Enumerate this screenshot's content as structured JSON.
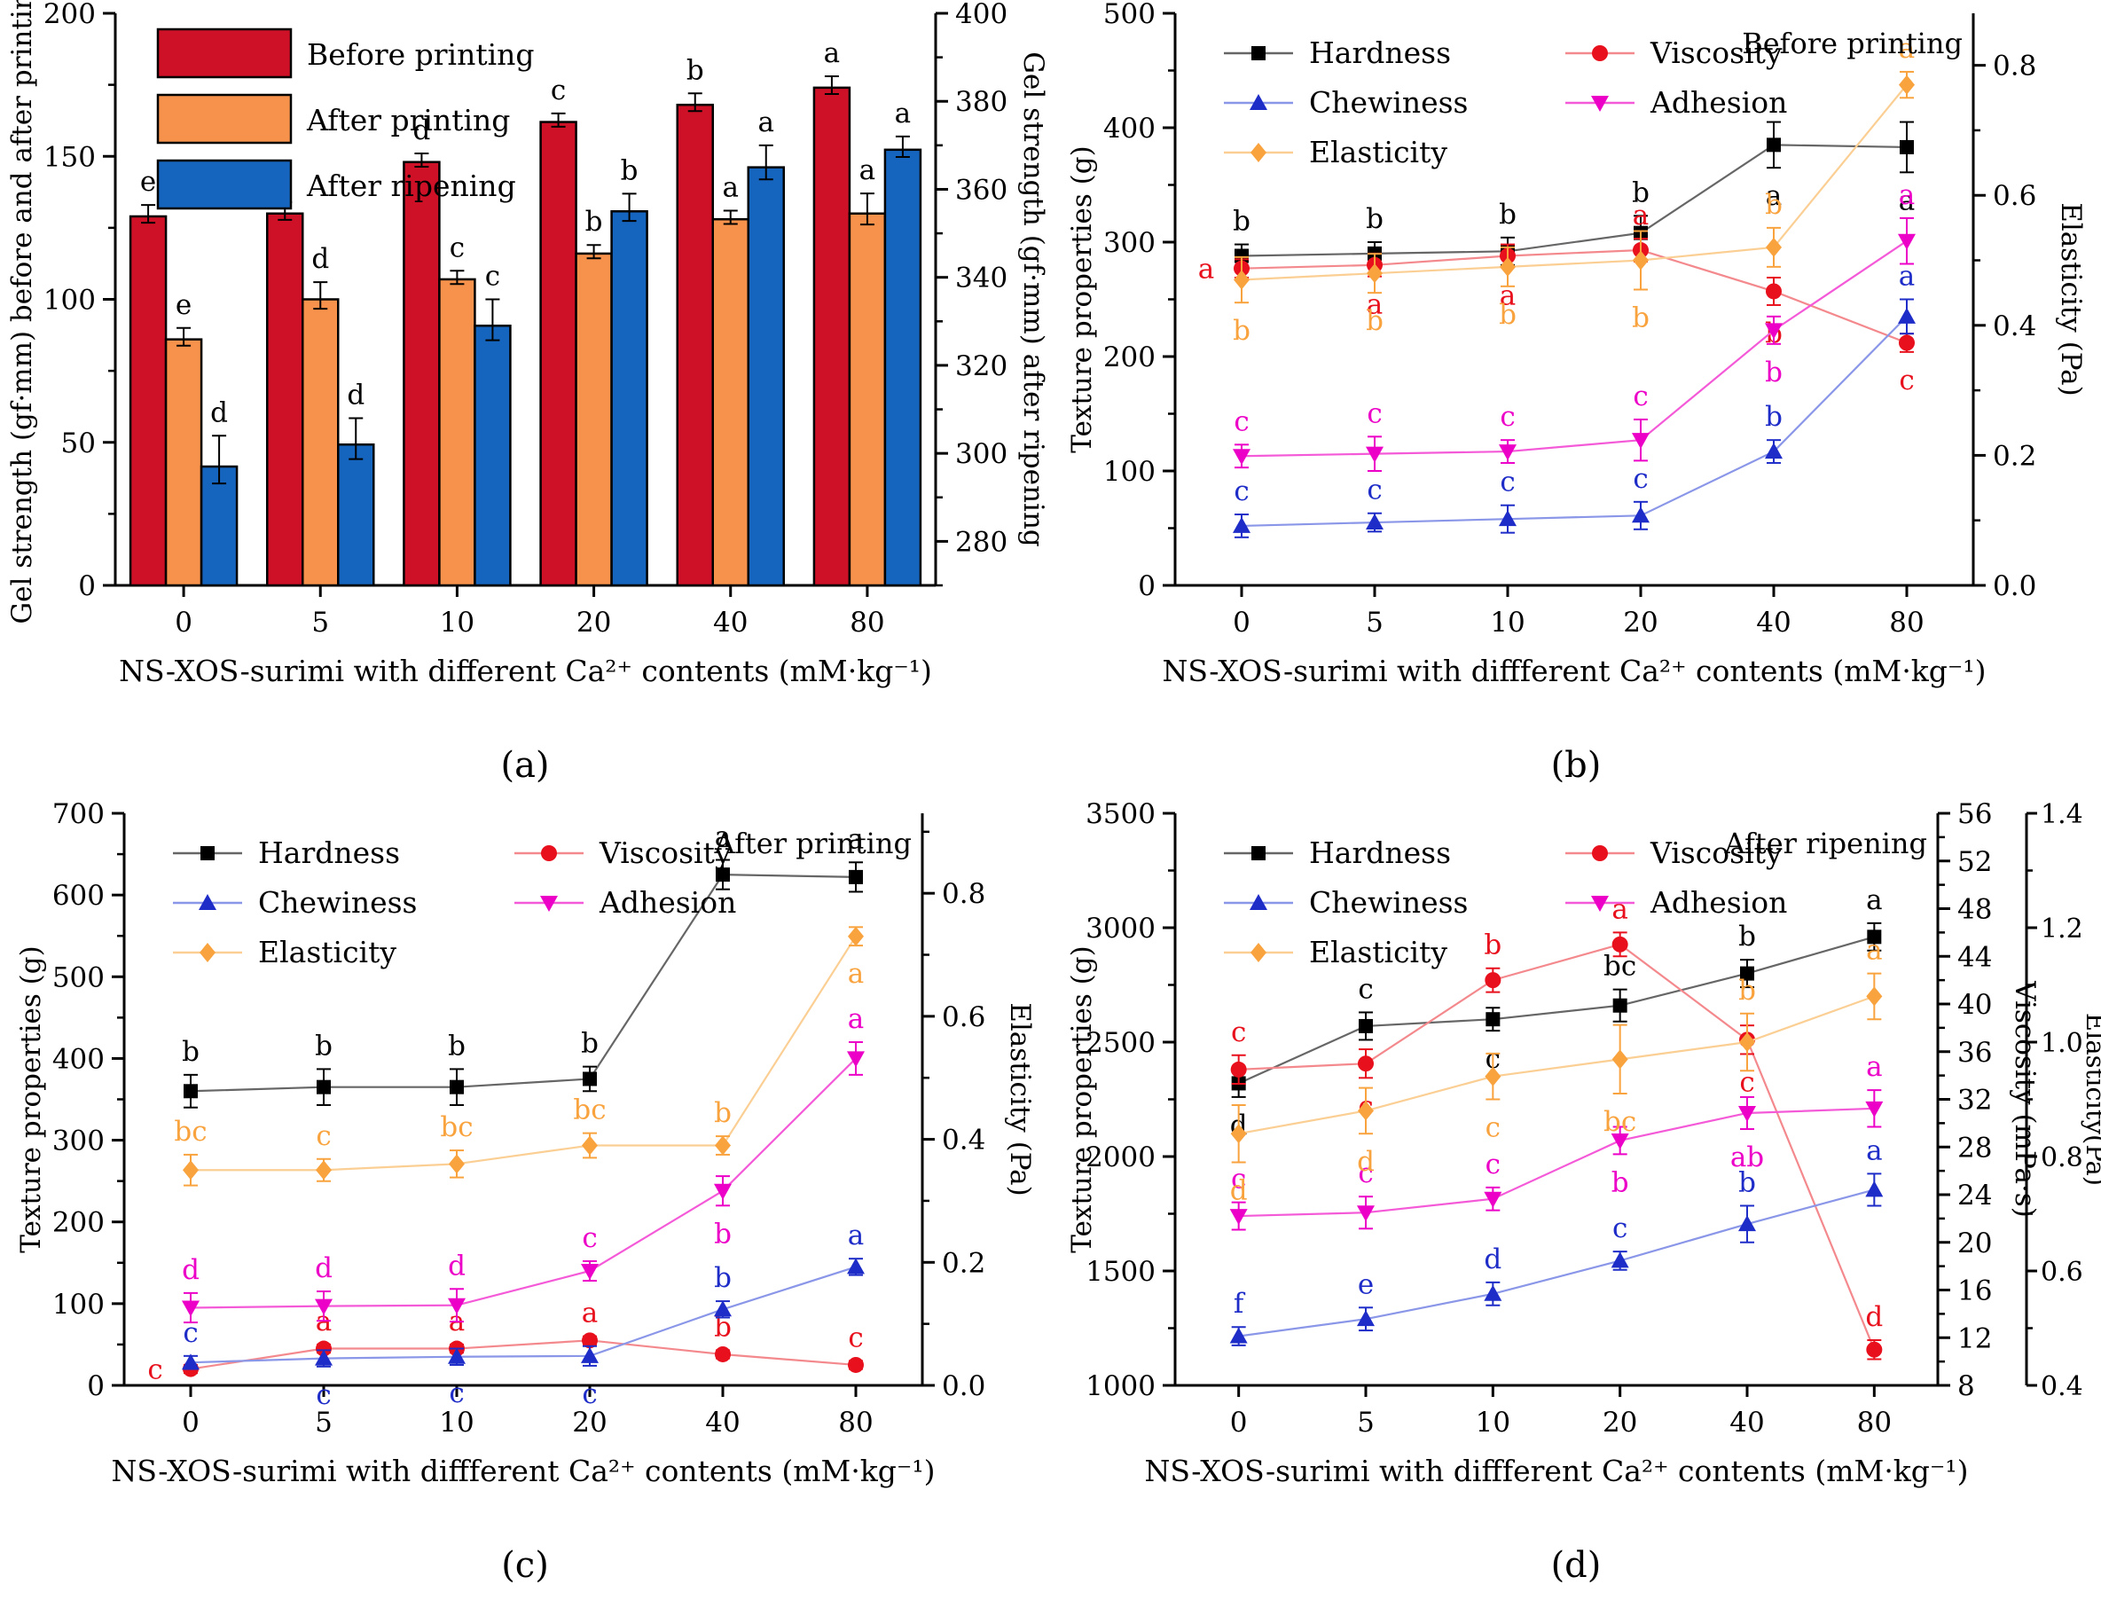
{
  "figure_background": "#ffffff",
  "chart_data": [
    {
      "id": "a",
      "caption": "(a)",
      "type": "bar",
      "x": {
        "label": "NS-XOS-surimi with different Ca²⁺ contents (mM·kg⁻¹)",
        "categories": [
          "0",
          "5",
          "10",
          "20",
          "40",
          "80"
        ]
      },
      "axes": {
        "left": {
          "label": "Gel strength (gf·mm) before and after printing",
          "min": 0,
          "max": 200,
          "ticks": [
            0,
            50,
            100,
            150,
            200
          ],
          "minor": 25,
          "decimals": 0
        },
        "right": {
          "label": "Gel strength (gf·mm) after ripening",
          "min": 270,
          "max": 400,
          "ticks": [
            280,
            300,
            320,
            340,
            360,
            380,
            400
          ],
          "minor": 10,
          "decimals": 0
        }
      },
      "series": [
        {
          "name": "Before printing",
          "axis": "left",
          "color": "#CE1126",
          "values": [
            129,
            130,
            148,
            162,
            168,
            174
          ],
          "errors": [
            4,
            4,
            3,
            3,
            4,
            4
          ],
          "letters": [
            "e",
            "e",
            "d",
            "c",
            "b",
            "a"
          ]
        },
        {
          "name": "After printing",
          "axis": "left",
          "color": "#F6924B",
          "values": [
            86,
            100,
            107,
            116,
            128,
            130
          ],
          "errors": [
            4,
            6,
            3,
            3,
            3,
            7
          ],
          "letters": [
            "e",
            "d",
            "c",
            "b",
            "a",
            "a"
          ]
        },
        {
          "name": "After ripening",
          "axis": "right",
          "color": "#1565BE",
          "values": [
            297,
            302,
            329,
            355,
            365,
            369
          ],
          "errors": [
            7,
            6,
            6,
            4,
            5,
            3
          ],
          "letters": [
            "d",
            "d",
            "c",
            "b",
            "a",
            "a"
          ]
        }
      ]
    },
    {
      "id": "b",
      "caption": "(b)",
      "type": "line",
      "plot_label": "Before printing",
      "x": {
        "label": "NS-XOS-surimi with diffferent Ca²⁺ contents (mM·kg⁻¹)",
        "categories": [
          "0",
          "5",
          "10",
          "20",
          "40",
          "80"
        ]
      },
      "axes": {
        "left": {
          "label": "Texture properties (g)",
          "min": 0,
          "max": 500,
          "ticks": [
            0,
            100,
            200,
            300,
            400,
            500
          ],
          "minor": 50,
          "decimals": 0
        },
        "right": {
          "label": "Elasticity (Pa)",
          "min": 0,
          "max": 0.88,
          "ticks": [
            0.0,
            0.2,
            0.4,
            0.6,
            0.8
          ],
          "minor": 0.1,
          "decimals": 1
        }
      },
      "series": [
        {
          "name": "Hardness",
          "axis": "left",
          "marker": "square",
          "color": "#000000",
          "line_color": "#666666",
          "values": [
            288,
            290,
            292,
            308,
            385,
            383
          ],
          "errors": [
            10,
            10,
            12,
            15,
            20,
            22
          ],
          "letters": [
            "b",
            "b",
            "b",
            "b",
            "a",
            "a"
          ],
          "letter_pos": [
            "above",
            "above",
            "above",
            "above",
            "below",
            "below"
          ]
        },
        {
          "name": "Viscosity",
          "axis": "left",
          "marker": "circle",
          "color": "#E8101C",
          "line_color": "#F4898D",
          "values": [
            277,
            280,
            288,
            293,
            257,
            212
          ],
          "errors": [
            8,
            10,
            10,
            10,
            12,
            8
          ],
          "letters": [
            "a",
            "a",
            "a",
            "a",
            "b",
            "c"
          ],
          "letter_pos": [
            "left",
            "below",
            "below",
            "above",
            "below",
            "below"
          ]
        },
        {
          "name": "Chewiness",
          "axis": "left",
          "marker": "triangle-up",
          "color": "#1F2DC8",
          "line_color": "#8A96E8",
          "values": [
            52,
            55,
            58,
            61,
            117,
            235
          ],
          "errors": [
            10,
            8,
            12,
            12,
            10,
            15
          ],
          "letters": [
            "c",
            "c",
            "c",
            "c",
            "b",
            "a"
          ],
          "letter_pos": [
            "above",
            "above",
            "above",
            "above",
            "above",
            "above"
          ]
        },
        {
          "name": "Adhesion",
          "axis": "left",
          "marker": "triangle-down",
          "color": "#EC00C8",
          "line_color": "#F45AD8",
          "values": [
            113,
            115,
            117,
            127,
            223,
            301
          ],
          "errors": [
            10,
            15,
            10,
            18,
            12,
            20
          ],
          "letters": [
            "c",
            "c",
            "c",
            "c",
            "b",
            "a"
          ],
          "letter_pos": [
            "above",
            "above",
            "above",
            "above",
            "below",
            "above"
          ]
        },
        {
          "name": "Elasticity",
          "axis": "right",
          "marker": "diamond",
          "color": "#F9A33F",
          "line_color": "#FBCF94",
          "values": [
            0.47,
            0.48,
            0.49,
            0.5,
            0.52,
            0.77
          ],
          "errors": [
            0.035,
            0.03,
            0.03,
            0.045,
            0.03,
            0.02
          ],
          "letters": [
            "b",
            "b",
            "b",
            "b",
            "b",
            "a"
          ],
          "letter_pos": [
            "below",
            "below",
            "below",
            "below",
            "above",
            "above"
          ]
        }
      ],
      "legend_order": [
        "Hardness",
        "Viscosity",
        "Chewiness",
        "Adhesion",
        "Elasticity"
      ]
    },
    {
      "id": "c",
      "caption": "(c)",
      "type": "line",
      "plot_label": "After printing",
      "x": {
        "label": "NS-XOS-surimi with diffferent Ca²⁺ contents (mM·kg⁻¹)",
        "categories": [
          "0",
          "5",
          "10",
          "20",
          "40",
          "80"
        ]
      },
      "axes": {
        "left": {
          "label": "Texture properties (g)",
          "min": 0,
          "max": 700,
          "ticks": [
            0,
            100,
            200,
            300,
            400,
            500,
            600,
            700
          ],
          "minor": 50,
          "decimals": 0
        },
        "right": {
          "label": "Elasticity (Pa)",
          "min": 0,
          "max": 0.93,
          "ticks": [
            0.0,
            0.2,
            0.4,
            0.6,
            0.8
          ],
          "minor": 0.1,
          "decimals": 1
        }
      },
      "series": [
        {
          "name": "Hardness",
          "axis": "left",
          "marker": "square",
          "color": "#000000",
          "line_color": "#666666",
          "values": [
            360,
            365,
            365,
            375,
            625,
            622
          ],
          "errors": [
            20,
            22,
            22,
            15,
            18,
            18
          ],
          "letters": [
            "b",
            "b",
            "b",
            "b",
            "a",
            "a"
          ],
          "letter_pos": [
            "above",
            "above",
            "above",
            "above",
            "above",
            "above"
          ]
        },
        {
          "name": "Viscosity",
          "axis": "left",
          "marker": "circle",
          "color": "#E8101C",
          "line_color": "#F4898D",
          "values": [
            20,
            45,
            45,
            55,
            38,
            25
          ],
          "errors": [
            5,
            5,
            5,
            5,
            5,
            5
          ],
          "letters": [
            "c",
            "a",
            "a",
            "a",
            "b",
            "c"
          ],
          "letter_pos": [
            "left",
            "above",
            "above",
            "above",
            "above",
            "above"
          ]
        },
        {
          "name": "Chewiness",
          "axis": "left",
          "marker": "triangle-up",
          "color": "#1F2DC8",
          "line_color": "#8A96E8",
          "values": [
            28,
            33,
            35,
            36,
            93,
            145
          ],
          "errors": [
            8,
            10,
            10,
            12,
            10,
            10
          ],
          "letters": [
            "c",
            "c",
            "c",
            "c",
            "b",
            "a"
          ],
          "letter_pos": [
            "above",
            "below",
            "below",
            "below",
            "above",
            "above"
          ]
        },
        {
          "name": "Adhesion",
          "axis": "left",
          "marker": "triangle-down",
          "color": "#EC00C8",
          "line_color": "#F45AD8",
          "values": [
            95,
            97,
            98,
            140,
            238,
            400
          ],
          "errors": [
            18,
            18,
            20,
            12,
            18,
            20
          ],
          "letters": [
            "d",
            "d",
            "d",
            "c",
            "b",
            "a"
          ],
          "letter_pos": [
            "above",
            "above",
            "above",
            "above",
            "below",
            "above"
          ]
        },
        {
          "name": "Elasticity",
          "axis": "right",
          "marker": "diamond",
          "color": "#F9A33F",
          "line_color": "#FBCF94",
          "values": [
            0.35,
            0.35,
            0.36,
            0.39,
            0.39,
            0.73
          ],
          "errors": [
            0.025,
            0.018,
            0.022,
            0.02,
            0.015,
            0.015
          ],
          "letters": [
            "bc",
            "c",
            "bc",
            "bc",
            "b",
            "a"
          ],
          "letter_pos": [
            "above",
            "above",
            "above",
            "above",
            "above",
            "below"
          ]
        }
      ],
      "legend_order": [
        "Hardness",
        "Viscosity",
        "Chewiness",
        "Adhesion",
        "Elasticity"
      ]
    },
    {
      "id": "d",
      "caption": "(d)",
      "type": "line",
      "plot_label": "After ripening",
      "x": {
        "label": "NS-XOS-surimi with diffferent Ca²⁺ contents (mM·kg⁻¹)",
        "categories": [
          "0",
          "5",
          "10",
          "20",
          "40",
          "80"
        ]
      },
      "axes": {
        "left": {
          "label": "Texture properties (g)",
          "min": 1000,
          "max": 3500,
          "ticks": [
            1000,
            1500,
            2000,
            2500,
            3000,
            3500
          ],
          "minor": 250,
          "decimals": 0
        },
        "right": {
          "label": "Viscosity (mPa·s)",
          "min": 8,
          "max": 56,
          "ticks": [
            8,
            12,
            16,
            20,
            24,
            28,
            32,
            36,
            40,
            44,
            48,
            52,
            56
          ],
          "minor": 2,
          "decimals": 0
        },
        "right2": {
          "label": "Elasticity(Pa)",
          "min": 0.4,
          "max": 1.4,
          "ticks": [
            0.4,
            0.6,
            0.8,
            1.0,
            1.2,
            1.4
          ],
          "minor": 0.1,
          "decimals": 1
        }
      },
      "series": [
        {
          "name": "Hardness",
          "axis": "left",
          "marker": "square",
          "color": "#000000",
          "line_color": "#666666",
          "values": [
            2320,
            2570,
            2600,
            2660,
            2800,
            2960
          ],
          "errors": [
            60,
            60,
            50,
            70,
            60,
            60
          ],
          "letters": [
            "d",
            "c",
            "c",
            "bc",
            "b",
            "a"
          ],
          "letter_pos": [
            "below",
            "above",
            "below",
            "above",
            "above",
            "above"
          ]
        },
        {
          "name": "Viscosity",
          "axis": "right",
          "marker": "circle",
          "color": "#E8101C",
          "line_color": "#F4898D",
          "values": [
            34.5,
            35,
            42,
            45,
            37,
            11
          ],
          "errors": [
            1.2,
            1.2,
            1,
            1,
            1.2,
            0.8
          ],
          "letters": [
            "c",
            "c",
            "b",
            "a",
            "c",
            "d"
          ],
          "letter_pos": [
            "above",
            "below",
            "above",
            "above",
            "below",
            "above"
          ]
        },
        {
          "name": "Chewiness",
          "axis": "left",
          "marker": "triangle-up",
          "color": "#1F2DC8",
          "line_color": "#8A96E8",
          "values": [
            1215,
            1290,
            1400,
            1545,
            1705,
            1855
          ],
          "errors": [
            40,
            50,
            50,
            40,
            80,
            70
          ],
          "letters": [
            "f",
            "e",
            "d",
            "c",
            "b",
            "a"
          ],
          "letter_pos": [
            "above",
            "above",
            "above",
            "above",
            "above",
            "above"
          ]
        },
        {
          "name": "Adhesion",
          "axis": "left",
          "marker": "triangle-down",
          "color": "#EC00C8",
          "line_color": "#F45AD8",
          "values": [
            1740,
            1755,
            1815,
            2070,
            2190,
            2210
          ],
          "errors": [
            60,
            70,
            50,
            60,
            70,
            80
          ],
          "letters": [
            "c",
            "c",
            "c",
            "b",
            "ab",
            "a"
          ],
          "letter_pos": [
            "above",
            "above",
            "above",
            "below",
            "below",
            "above"
          ]
        },
        {
          "name": "Elasticity",
          "axis": "right2",
          "marker": "diamond",
          "color": "#F9A33F",
          "line_color": "#FBCF94",
          "values": [
            0.84,
            0.88,
            0.94,
            0.97,
            1.0,
            1.08
          ],
          "errors": [
            0.05,
            0.04,
            0.04,
            0.06,
            0.05,
            0.04
          ],
          "letters": [
            "d",
            "d",
            "c",
            "bc",
            "b",
            "a"
          ],
          "letter_pos": [
            "below",
            "below",
            "below",
            "below",
            "above",
            "above"
          ]
        }
      ],
      "legend_order": [
        "Hardness",
        "Viscosity",
        "Chewiness",
        "Adhesion",
        "Elasticity"
      ]
    }
  ]
}
